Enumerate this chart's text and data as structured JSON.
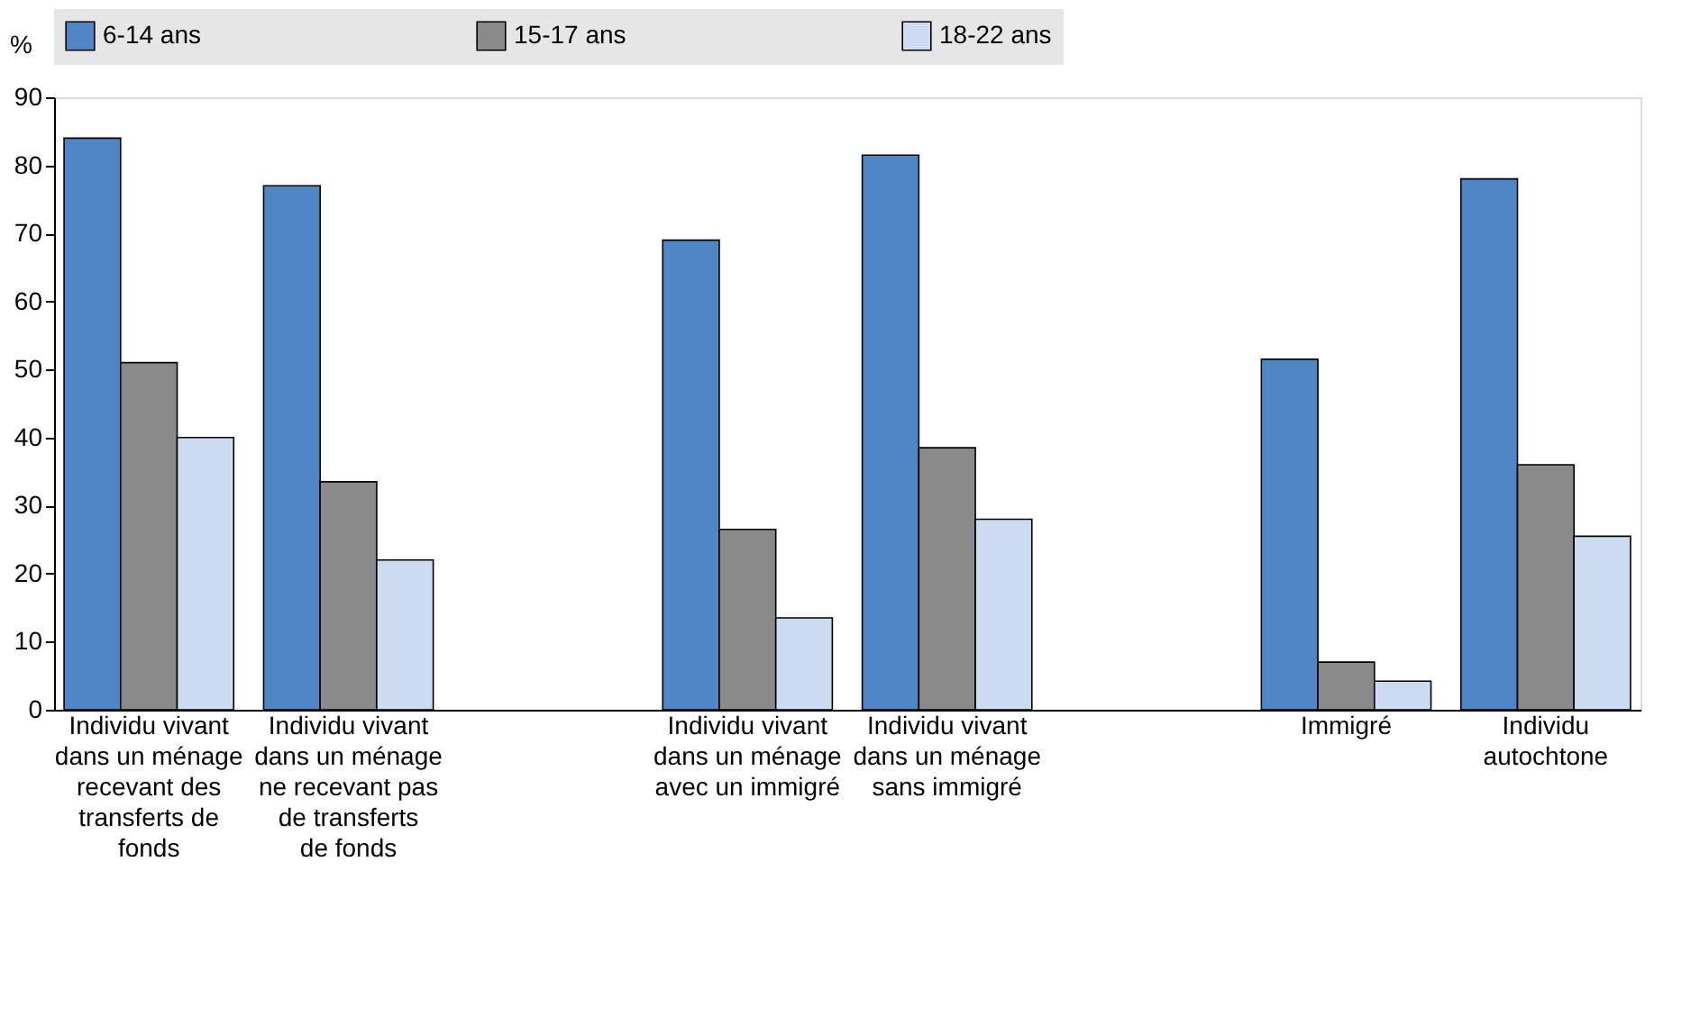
{
  "chart_data": {
    "type": "bar",
    "ylabel": "%",
    "categories": [
      "Individu vivant dans un ménage recevant des transferts de fonds",
      "Individu vivant dans un ménage ne recevant pas de transferts de fonds",
      null,
      "Individu vivant dans un ménage avec un immigré",
      "Individu vivant dans un ménage sans immigré",
      null,
      "Immigré",
      "Individu autochtone"
    ],
    "series": [
      {
        "name": "6-14 ans",
        "color": "#4e86c6",
        "values": [
          84,
          77,
          null,
          69,
          81.5,
          null,
          51.5,
          78
        ]
      },
      {
        "name": "15-17 ans",
        "color": "#8a8a8a",
        "values": [
          51,
          33.5,
          null,
          26.5,
          38.5,
          null,
          7,
          36
        ]
      },
      {
        "name": "18-22 ans",
        "color": "#cddcf0",
        "values": [
          40,
          22,
          null,
          13.5,
          28,
          null,
          4.2,
          25.5
        ]
      }
    ],
    "ylim": [
      0,
      90
    ],
    "yticks": [
      0,
      10,
      20,
      30,
      40,
      50,
      60,
      70,
      80,
      90
    ],
    "grid": false,
    "legend": "top"
  }
}
